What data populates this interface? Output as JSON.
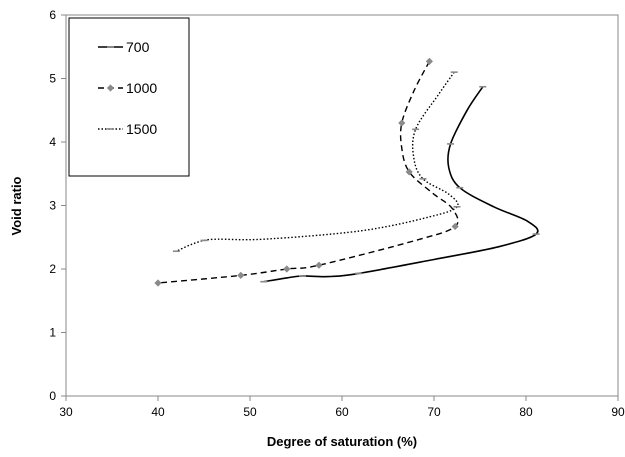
{
  "chart_data": {
    "type": "line",
    "xlabel": "Degree of saturation (%)",
    "ylabel": "Void ratio",
    "xlim": [
      30,
      90
    ],
    "ylim": [
      0,
      6
    ],
    "x_ticks": [
      30,
      40,
      50,
      60,
      70,
      80,
      90
    ],
    "y_ticks": [
      0,
      1,
      2,
      3,
      4,
      5,
      6
    ],
    "grid": false,
    "legend_position": "top-left",
    "series": [
      {
        "name": "700",
        "line_style": "solid",
        "marker": "dash",
        "color": "#000000",
        "points": [
          [
            75.3,
            4.87
          ],
          [
            73.6,
            4.5
          ],
          [
            71.8,
            3.97
          ],
          [
            71.6,
            3.6
          ],
          [
            72.8,
            3.28
          ],
          [
            76.5,
            2.98
          ],
          [
            80.2,
            2.75
          ],
          [
            81.1,
            2.55
          ],
          [
            77.0,
            2.35
          ],
          [
            70.0,
            2.15
          ],
          [
            61.8,
            1.93
          ],
          [
            58.5,
            1.88
          ],
          [
            55.7,
            1.89
          ],
          [
            54.0,
            1.86
          ],
          [
            51.5,
            1.8
          ]
        ],
        "marker_points": [
          [
            75.3,
            4.87
          ],
          [
            71.8,
            3.97
          ],
          [
            72.8,
            3.28
          ],
          [
            81.1,
            2.55
          ],
          [
            61.8,
            1.93
          ],
          [
            55.7,
            1.89
          ],
          [
            51.5,
            1.8
          ]
        ]
      },
      {
        "name": "1000",
        "line_style": "dashed",
        "marker": "diamond",
        "color": "#000000",
        "points": [
          [
            69.5,
            5.27
          ],
          [
            67.8,
            4.8
          ],
          [
            66.5,
            4.3
          ],
          [
            66.5,
            3.9
          ],
          [
            67.3,
            3.53
          ],
          [
            69.8,
            3.2
          ],
          [
            72.0,
            2.95
          ],
          [
            72.3,
            2.67
          ],
          [
            68.0,
            2.45
          ],
          [
            57.5,
            2.06
          ],
          [
            54.0,
            2.0
          ],
          [
            49.0,
            1.9
          ],
          [
            40.0,
            1.78
          ]
        ],
        "marker_points": [
          [
            69.5,
            5.27
          ],
          [
            66.5,
            4.3
          ],
          [
            67.3,
            3.53
          ],
          [
            72.3,
            2.67
          ],
          [
            57.5,
            2.06
          ],
          [
            54.0,
            2.0
          ],
          [
            49.0,
            1.9
          ],
          [
            40.0,
            1.78
          ]
        ]
      },
      {
        "name": "1500",
        "line_style": "dotted",
        "marker": "dash",
        "color": "#000000",
        "points": [
          [
            72.2,
            5.1
          ],
          [
            70.5,
            4.75
          ],
          [
            68.0,
            4.2
          ],
          [
            67.8,
            3.75
          ],
          [
            68.8,
            3.42
          ],
          [
            71.6,
            3.18
          ],
          [
            72.5,
            2.98
          ],
          [
            69.5,
            2.82
          ],
          [
            62.0,
            2.6
          ],
          [
            51.5,
            2.47
          ],
          [
            46.5,
            2.47
          ],
          [
            45.0,
            2.45
          ],
          [
            43.5,
            2.38
          ],
          [
            42.0,
            2.28
          ]
        ],
        "marker_points": [
          [
            72.2,
            5.1
          ],
          [
            68.0,
            4.2
          ],
          [
            68.8,
            3.42
          ],
          [
            72.5,
            2.98
          ],
          [
            45.0,
            2.45
          ],
          [
            42.0,
            2.28
          ]
        ]
      }
    ]
  }
}
